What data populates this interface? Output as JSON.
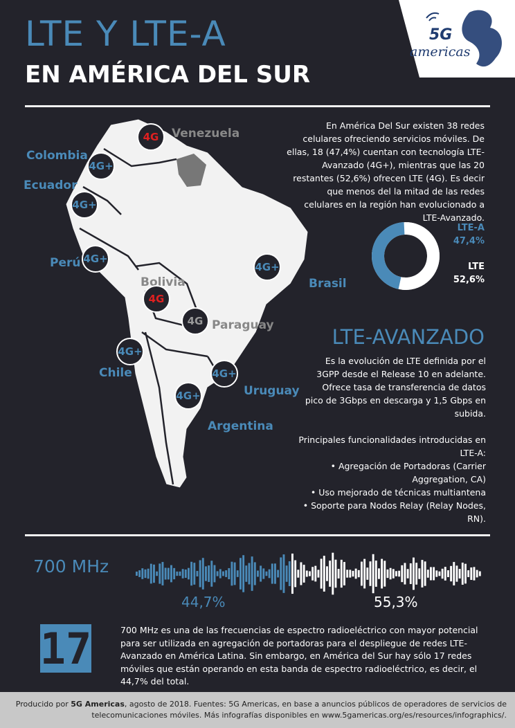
{
  "header": {
    "title_line1": "LTE Y LTE-A",
    "title_line2": "EN AMÉRICA DEL SUR",
    "logo_text_top": "5G",
    "logo_text_bottom": "americas"
  },
  "map": {
    "countries": [
      {
        "name": "Venezuela",
        "tech": "4G",
        "badge_color": "red"
      },
      {
        "name": "Colombia",
        "tech": "4G+",
        "badge_color": "blue"
      },
      {
        "name": "Ecuador",
        "tech": "4G+",
        "badge_color": "blue"
      },
      {
        "name": "Perú",
        "tech": "4G+",
        "badge_color": "blue"
      },
      {
        "name": "Bolivia",
        "tech": "4G",
        "badge_color": "red"
      },
      {
        "name": "Paraguay",
        "tech": "4G",
        "badge_color": "grey"
      },
      {
        "name": "Brasil",
        "tech": "4G+",
        "badge_color": "blue"
      },
      {
        "name": "Chile",
        "tech": "4G+",
        "badge_color": "blue"
      },
      {
        "name": "Uruguay",
        "tech": "4G+",
        "badge_color": "blue"
      },
      {
        "name": "Argentina",
        "tech": "4G+",
        "badge_color": "blue"
      }
    ]
  },
  "intro": {
    "text": "En América Del Sur existen 38 redes celulares ofreciendo servicios móviles. De ellas, 18 (47,4%) cuentan con tecnología LTE-Avanzado (4G+), mientras que las 20 restantes (52,6%) ofrecen LTE (4G). Es decir que menos del la mitad de las redes celulares en la región han evolucionado a LTE-Avanzado."
  },
  "chart_data": {
    "type": "pie",
    "categories": [
      "LTE-A",
      "LTE"
    ],
    "values": [
      47.4,
      52.6
    ],
    "labels": [
      "47,4%",
      "52,6%"
    ],
    "colors": [
      "#4a8ab8",
      "#ffffff"
    ]
  },
  "lte_a": {
    "title": "LTE-AVANZADO",
    "description": "Es la evolución de LTE definida por el 3GPP desde el Release 10 en adelante. Ofrece tasa de transferencia de datos pico de 3Gbps en descarga y 1,5 Gbps en subida.",
    "features_intro": "Principales funcionalidades introducidas en LTE-A:",
    "features": [
      "Agregación de Portadoras (Carrier Aggregation, CA)",
      "Uso mejorado de técnicas multiantena",
      "Soporte para Nodos Relay (Relay Nodes, RN)."
    ]
  },
  "band": {
    "label": "700 MHz",
    "pct_using": "44,7%",
    "pct_not_using": "55,3%",
    "share_using": 0.447,
    "big_number": "17",
    "paragraph": "700 MHz es una de las frecuencias de espectro radioeléctrico con mayor potencial para ser utilizada en agregación de portadoras para el despliegue de redes LTE-Avanzado en América Latina. Sin embargo, en América del Sur hay sólo 17 redes móviles que están operando en esta banda de espectro radioeléctrico, es decir, el 44,7% del total."
  },
  "footer": {
    "prefix": "Producido por ",
    "brand": "5G Americas",
    "text": ", agosto de 2018. Fuentes: 5G Americas, en base a anuncios públicos de operadores de servicios de telecomunicaciones móviles. Más infografías disponibles en www.5gamericas.org/es/resources/infographics/."
  }
}
